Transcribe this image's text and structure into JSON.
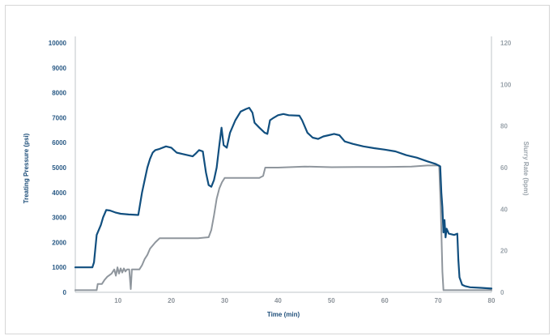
{
  "chart_data": {
    "type": "line",
    "title": "",
    "xlabel": "Time (min)",
    "ylabel_left": "Treating Pressure (psi)",
    "ylabel_right": "Slurry Rate (bpm)",
    "xlim": [
      2,
      80
    ],
    "ylim_left": [
      0,
      10000
    ],
    "ylim_right": [
      0,
      120
    ],
    "x_ticks": [
      "10",
      "20",
      "30",
      "40",
      "50",
      "60",
      "70",
      "80"
    ],
    "y_left_ticks": [
      "0",
      "1000",
      "2000",
      "3000",
      "4000",
      "5000",
      "6000",
      "7000",
      "8000",
      "9000",
      "10000"
    ],
    "y_right_ticks": [
      "0",
      "20",
      "40",
      "60",
      "80",
      "100",
      "120"
    ],
    "grid": false,
    "colors": {
      "pressure": "#114f7f",
      "rate": "#8f969d",
      "frame": "#d6d6d6",
      "axis": "#bfc4c8"
    },
    "series": [
      {
        "axis": "left",
        "points": [
          [
            2,
            1000
          ],
          [
            5.2,
            1000
          ],
          [
            5.5,
            1200
          ],
          [
            6.0,
            2300
          ],
          [
            6.8,
            2700
          ],
          [
            7.2,
            3000
          ],
          [
            7.8,
            3300
          ],
          [
            8.5,
            3280
          ],
          [
            9.5,
            3200
          ],
          [
            10.5,
            3150
          ],
          [
            12,
            3120
          ],
          [
            13.8,
            3100
          ],
          [
            14.5,
            4000
          ],
          [
            15,
            4500
          ],
          [
            15.5,
            5000
          ],
          [
            16,
            5350
          ],
          [
            16.5,
            5600
          ],
          [
            17,
            5700
          ],
          [
            17.8,
            5750
          ],
          [
            19,
            5850
          ],
          [
            20,
            5800
          ],
          [
            21,
            5600
          ],
          [
            22,
            5550
          ],
          [
            23,
            5500
          ],
          [
            24,
            5450
          ],
          [
            24.5,
            5550
          ],
          [
            25.2,
            5700
          ],
          [
            25.9,
            5650
          ],
          [
            26.5,
            4800
          ],
          [
            27.0,
            4300
          ],
          [
            27.5,
            4230
          ],
          [
            28.0,
            4500
          ],
          [
            28.5,
            5000
          ],
          [
            29.0,
            5900
          ],
          [
            29.4,
            6600
          ],
          [
            29.8,
            5900
          ],
          [
            30.4,
            5800
          ],
          [
            31,
            6400
          ],
          [
            32,
            6900
          ],
          [
            33,
            7250
          ],
          [
            34,
            7350
          ],
          [
            34.6,
            7400
          ],
          [
            35.2,
            7200
          ],
          [
            35.6,
            6800
          ],
          [
            36.5,
            6600
          ],
          [
            37.5,
            6400
          ],
          [
            38,
            6350
          ],
          [
            38.5,
            6900
          ],
          [
            39.2,
            7000
          ],
          [
            40,
            7100
          ],
          [
            41,
            7150
          ],
          [
            42,
            7100
          ],
          [
            44,
            7080
          ],
          [
            44.5,
            6900
          ],
          [
            45.5,
            6400
          ],
          [
            46.5,
            6200
          ],
          [
            47.5,
            6150
          ],
          [
            48.5,
            6250
          ],
          [
            49.5,
            6300
          ],
          [
            50.5,
            6350
          ],
          [
            51.5,
            6300
          ],
          [
            52.5,
            6050
          ],
          [
            54,
            5950
          ],
          [
            56,
            5850
          ],
          [
            58,
            5780
          ],
          [
            60,
            5720
          ],
          [
            62,
            5650
          ],
          [
            64,
            5500
          ],
          [
            66,
            5400
          ],
          [
            68,
            5250
          ],
          [
            69.5,
            5150
          ],
          [
            70.4,
            5050
          ],
          [
            70.6,
            4000
          ],
          [
            70.8,
            3400
          ],
          [
            71.0,
            2400
          ],
          [
            71.2,
            2900
          ],
          [
            71.4,
            2200
          ],
          [
            71.6,
            2550
          ],
          [
            72,
            2350
          ],
          [
            73,
            2300
          ],
          [
            73.6,
            2350
          ],
          [
            73.8,
            1300
          ],
          [
            74.0,
            600
          ],
          [
            74.5,
            300
          ],
          [
            75,
            250
          ],
          [
            76,
            200
          ],
          [
            78,
            180
          ],
          [
            80,
            150
          ]
        ]
      },
      {
        "axis": "right",
        "points": [
          [
            2,
            1
          ],
          [
            6.0,
            1
          ],
          [
            6.2,
            4
          ],
          [
            7,
            4
          ],
          [
            7.5,
            6
          ],
          [
            8,
            7.5
          ],
          [
            8.8,
            9
          ],
          [
            9.3,
            11
          ],
          [
            9.6,
            8
          ],
          [
            9.9,
            12
          ],
          [
            10.2,
            9
          ],
          [
            10.5,
            11.5
          ],
          [
            10.8,
            9.5
          ],
          [
            11.1,
            11.5
          ],
          [
            11.4,
            10
          ],
          [
            11.7,
            11
          ],
          [
            12.1,
            11
          ],
          [
            12.4,
            1.5
          ],
          [
            12.6,
            11
          ],
          [
            14,
            11
          ],
          [
            14.5,
            13
          ],
          [
            15,
            16
          ],
          [
            15.5,
            18
          ],
          [
            16,
            21
          ],
          [
            17,
            24
          ],
          [
            17.8,
            26
          ],
          [
            19,
            26
          ],
          [
            21,
            26
          ],
          [
            23,
            26
          ],
          [
            25,
            26
          ],
          [
            27,
            26.5
          ],
          [
            27.5,
            30
          ],
          [
            28,
            37
          ],
          [
            28.5,
            45
          ],
          [
            29,
            50
          ],
          [
            29.5,
            53
          ],
          [
            30,
            55
          ],
          [
            32,
            55
          ],
          [
            34,
            55
          ],
          [
            36.5,
            55
          ],
          [
            37.2,
            56
          ],
          [
            37.6,
            60
          ],
          [
            40,
            60
          ],
          [
            45,
            60.5
          ],
          [
            50,
            60.2
          ],
          [
            55,
            60.3
          ],
          [
            60,
            60.3
          ],
          [
            65,
            60.5
          ],
          [
            68,
            61
          ],
          [
            70.2,
            61
          ],
          [
            70.5,
            40
          ],
          [
            70.8,
            10
          ],
          [
            71.0,
            1
          ],
          [
            73,
            1
          ],
          [
            80,
            1
          ]
        ]
      }
    ]
  }
}
